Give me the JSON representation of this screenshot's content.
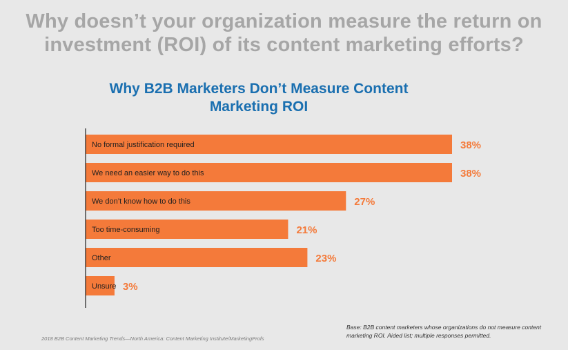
{
  "headline": "Why doesn’t your organization measure the return on investment (ROI) of its content marketing efforts?",
  "chart_data": {
    "type": "bar",
    "orientation": "horizontal",
    "title": "Why B2B Marketers Don’t Measure Content Marketing ROI",
    "categories": [
      "No formal justification required",
      "We need an easier way to do this",
      "We don’t know how to do this",
      "Too time-consuming",
      "Other",
      "Unsure"
    ],
    "values": [
      38,
      38,
      27,
      21,
      23,
      3
    ],
    "value_labels": [
      "38%",
      "38%",
      "27%",
      "21%",
      "23%",
      "3%"
    ],
    "xlim": [
      0,
      40
    ],
    "bar_color": "#f47a3a",
    "value_color": "#f47a3a",
    "grid": false,
    "xlabel": "",
    "ylabel": ""
  },
  "footer": {
    "source": "2018 B2B Content Marketing Trends—North America: Content Marketing Institute/MarketingProfs",
    "base": "Base: B2B content marketers whose organizations do not measure content marketing ROI. Aided list; multiple responses permitted."
  },
  "colors": {
    "background": "#e8e8e8",
    "headline": "#a6a6a6",
    "title": "#1a6fb0",
    "axis": "#1f1f1f"
  }
}
